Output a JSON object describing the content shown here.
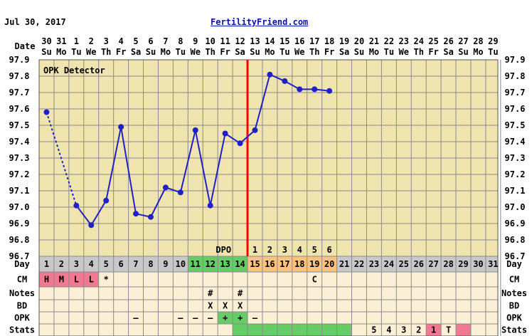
{
  "header": {
    "chart_date": "Jul 30, 2017",
    "site": "FertilityFriend.com"
  },
  "colors": {
    "plot_bg": "#efe4ad",
    "grid": "#8a8a8a",
    "line": "#2020c8",
    "coverline": "#ff0000",
    "row_bg": "#fbf0d6",
    "day_bg": "#c8c8c8",
    "fertile_green": "#66cc66",
    "luteal_orange": "#ffc380",
    "menses_pink": "#f07890",
    "stats_green": "#66cc66",
    "opk_positive_green": "#66cc66"
  },
  "chart_data": {
    "type": "line",
    "title": "",
    "xlabel": "Date",
    "ylabel": "",
    "ylim": [
      96.7,
      97.9
    ],
    "yticks": [
      "96.7",
      "96.8",
      "96.9",
      "97.0",
      "97.1",
      "97.2",
      "97.3",
      "97.4",
      "97.5",
      "97.6",
      "97.7",
      "97.8",
      "97.9"
    ],
    "dates": [
      "30",
      "31",
      "1",
      "2",
      "3",
      "4",
      "5",
      "6",
      "7",
      "8",
      "9",
      "10",
      "11",
      "12",
      "13",
      "14",
      "15",
      "16",
      "17",
      "18",
      "19",
      "20",
      "21",
      "22",
      "23",
      "24",
      "25",
      "26",
      "27",
      "28",
      "29"
    ],
    "weekdays": [
      "Su",
      "Mo",
      "Tu",
      "We",
      "Th",
      "Fr",
      "Sa",
      "Su",
      "Mo",
      "Tu",
      "We",
      "Th",
      "Fr",
      "Sa",
      "Su",
      "Mo",
      "Tu",
      "We",
      "Th",
      "Fr",
      "Sa",
      "Su",
      "Mo",
      "Tu",
      "We",
      "Th",
      "Fr",
      "Sa",
      "Su",
      "Mo",
      "Tu"
    ],
    "cycle_days": [
      "1",
      "2",
      "3",
      "4",
      "5",
      "6",
      "7",
      "8",
      "9",
      "10",
      "11",
      "12",
      "13",
      "14",
      "15",
      "16",
      "17",
      "18",
      "19",
      "20",
      "21",
      "22",
      "23",
      "24",
      "25",
      "26",
      "27",
      "28",
      "29",
      "30",
      "31"
    ],
    "temperatures": [
      97.58,
      null,
      97.01,
      96.89,
      97.04,
      97.49,
      96.96,
      96.94,
      97.12,
      97.09,
      97.47,
      97.01,
      97.45,
      97.39,
      97.47,
      97.81,
      97.77,
      97.72,
      97.72,
      97.71,
      null,
      null,
      null,
      null,
      null,
      null,
      null,
      null,
      null,
      null,
      null
    ],
    "dashed_segment": [
      0,
      2
    ],
    "ovulation_day_index": 13,
    "opk_detector_label": "OPK Detector",
    "dpo_label": "DPO",
    "dpo": [
      null,
      null,
      null,
      null,
      null,
      null,
      null,
      null,
      null,
      null,
      null,
      null,
      null,
      null,
      "1",
      "2",
      "3",
      "4",
      "5",
      "6",
      null,
      null,
      null,
      null,
      null,
      null,
      null,
      null,
      null,
      null,
      null
    ],
    "fertile_days": [
      10,
      11,
      12,
      13
    ],
    "luteal_days": [
      14,
      15,
      16,
      17,
      18,
      19
    ],
    "cm": [
      "H",
      "M",
      "L",
      "L",
      "*",
      "",
      "",
      "",
      "",
      "",
      "",
      "",
      "",
      "",
      "",
      "",
      "",
      "",
      "C",
      "",
      "",
      "",
      "",
      "",
      "",
      "",
      "",
      "",
      "",
      "",
      ""
    ],
    "cm_menses_days": [
      0,
      1,
      2,
      3
    ],
    "notes": [
      "",
      "",
      "",
      "",
      "",
      "",
      "",
      "",
      "",
      "",
      "",
      "#",
      "",
      "#",
      "",
      "",
      "",
      "",
      "",
      "",
      "",
      "",
      "",
      "",
      "",
      "",
      "",
      "",
      "",
      "",
      ""
    ],
    "bd": [
      "",
      "",
      "",
      "",
      "",
      "",
      "",
      "",
      "",
      "",
      "",
      "X",
      "X",
      "X",
      "",
      "",
      "",
      "",
      "",
      "",
      "",
      "",
      "",
      "",
      "",
      "",
      "",
      "",
      "",
      "",
      ""
    ],
    "opk": [
      "",
      "",
      "",
      "",
      "",
      "",
      "–",
      "",
      "",
      "–",
      "–",
      "–",
      "+",
      "+",
      "–",
      "",
      "",
      "",
      "",
      "",
      "",
      "",
      "",
      "",
      "",
      "",
      "",
      "",
      "",
      "",
      ""
    ],
    "opk_positive_days": [
      12,
      13
    ],
    "stats": [
      "",
      "",
      "",
      "",
      "",
      "",
      "",
      "",
      "",
      "",
      "",
      "",
      "",
      "",
      "",
      "",
      "",
      "",
      "",
      "",
      "",
      "",
      "5",
      "4",
      "3",
      "2",
      "1",
      "T",
      "",
      "",
      ""
    ],
    "stats_green_days": [
      13,
      14,
      15,
      16,
      17,
      18,
      19,
      20
    ],
    "stats_pink_days": [
      26,
      28
    ]
  },
  "rows": {
    "date_label": "Date",
    "day_label": "Day",
    "cm_label": "CM",
    "notes_label": "Notes",
    "bd_label": "BD",
    "opk_label": "OPK",
    "stats_label": "Stats"
  }
}
